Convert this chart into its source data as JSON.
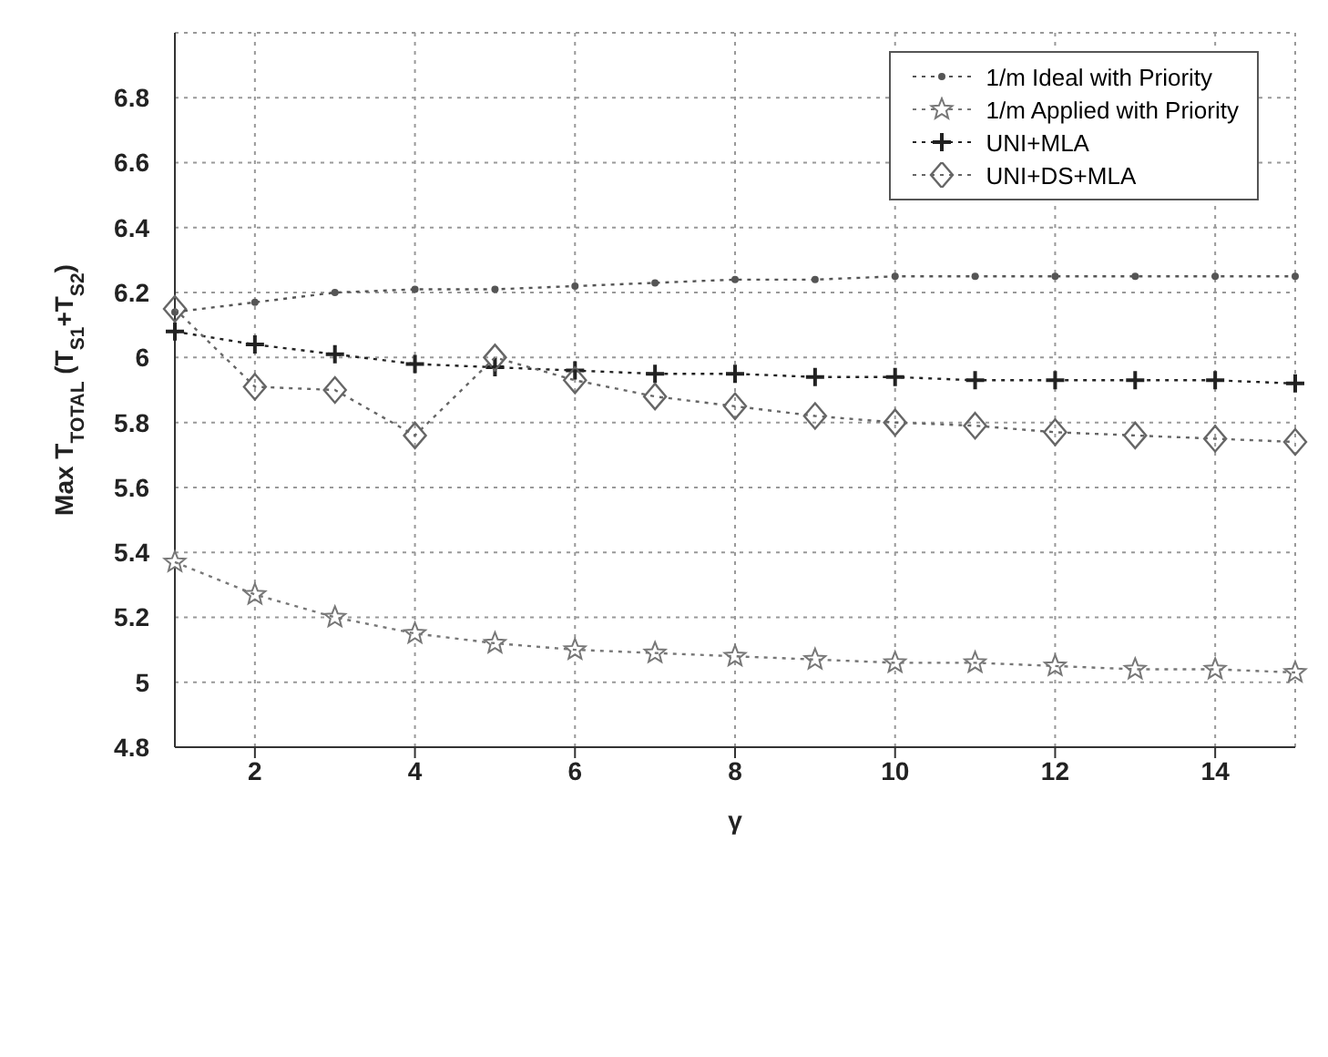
{
  "chart_data": {
    "type": "line",
    "xlabel": "γ",
    "ylabel": "Max T$_{TOTAL}$ (T$_{S1}$+T$_{S2}$)",
    "x": [
      1,
      2,
      3,
      4,
      5,
      6,
      7,
      8,
      9,
      10,
      11,
      12,
      13,
      14,
      15
    ],
    "series": [
      {
        "name": "1/m Ideal with Priority",
        "color": "#555555",
        "marker": "circle",
        "values": [
          6.14,
          6.17,
          6.2,
          6.21,
          6.21,
          6.22,
          6.23,
          6.24,
          6.24,
          6.25,
          6.25,
          6.25,
          6.25,
          6.25,
          6.25
        ]
      },
      {
        "name": "1/m Applied with Priority",
        "color": "#777777",
        "marker": "star",
        "values": [
          5.37,
          5.27,
          5.2,
          5.15,
          5.12,
          5.1,
          5.09,
          5.08,
          5.07,
          5.06,
          5.06,
          5.05,
          5.04,
          5.04,
          5.03
        ]
      },
      {
        "name": "UNI+MLA",
        "color": "#222222",
        "marker": "cross",
        "values": [
          6.08,
          6.04,
          6.01,
          5.98,
          5.97,
          5.96,
          5.95,
          5.95,
          5.94,
          5.94,
          5.93,
          5.93,
          5.93,
          5.93,
          5.92
        ]
      },
      {
        "name": "UNI+DS+MLA",
        "color": "#666666",
        "marker": "diamond",
        "values": [
          6.15,
          5.91,
          5.9,
          5.76,
          6.0,
          5.93,
          5.88,
          5.85,
          5.82,
          5.8,
          5.79,
          5.77,
          5.76,
          5.75,
          5.74
        ]
      }
    ],
    "xlim": [
      1,
      15
    ],
    "xticks": [
      2,
      4,
      6,
      8,
      10,
      12,
      14
    ],
    "ylim": [
      4.8,
      7.0
    ],
    "yticks": [
      4.8,
      5,
      5.2,
      5.4,
      5.6,
      5.8,
      6,
      6.2,
      6.4,
      6.6,
      6.8,
      {
        "value": 7.0,
        "label": null
      }
    ],
    "grid": true,
    "legend": "top right",
    "line_style": "dotted"
  }
}
